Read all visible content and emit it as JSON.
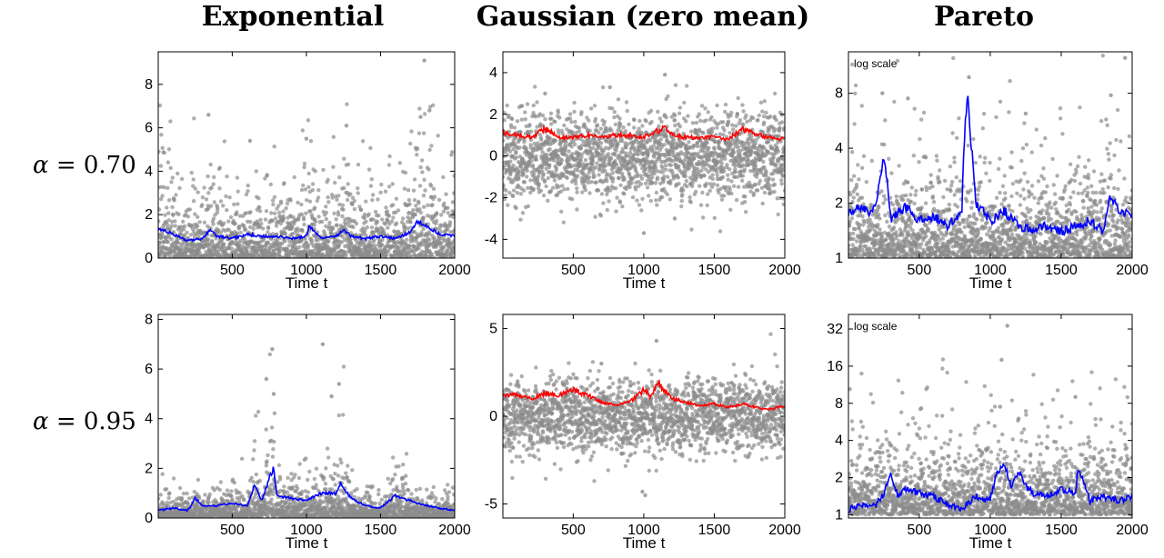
{
  "columns": [
    "Exponential",
    "Gaussian (zero mean)",
    "Pareto"
  ],
  "rows": [
    {
      "greek": "α",
      "value": " = 0.70"
    },
    {
      "greek": "α",
      "value": " = 0.95"
    }
  ],
  "colors": {
    "scatter": "#8c8c8c",
    "blue_line": "#0000ff",
    "red_line": "#ff0000",
    "frame": "#000000"
  },
  "chart_data": [
    {
      "type": "scatter",
      "row": 0,
      "col": 0,
      "dist": "exponential",
      "scale": 1.0,
      "xlabel": "Time t",
      "xlim": [
        1,
        2000
      ],
      "ylim": [
        0,
        9.5
      ],
      "x_ticks": [
        500,
        1000,
        1500,
        2000
      ],
      "y_ticks": [
        0,
        2,
        4,
        6,
        8
      ],
      "y_tick_labels": [
        "0",
        "2",
        "4",
        "6",
        "8"
      ],
      "annotation": "",
      "line_color": "#0000ff",
      "series": [
        {
          "kind": "samples",
          "n_points": 2000
        },
        {
          "kind": "running_estimate",
          "x": [
            1,
            100,
            200,
            300,
            350,
            400,
            500,
            600,
            700,
            800,
            900,
            1000,
            1020,
            1100,
            1200,
            1250,
            1300,
            1400,
            1500,
            1600,
            1700,
            1750,
            1800,
            1900,
            2000
          ],
          "y": [
            1.4,
            1.1,
            0.8,
            0.9,
            1.3,
            1.0,
            0.9,
            1.1,
            1.0,
            1.0,
            0.9,
            1.0,
            1.5,
            0.9,
            1.0,
            1.3,
            1.0,
            0.9,
            1.0,
            0.9,
            1.2,
            1.7,
            1.5,
            1.1,
            1.0
          ]
        }
      ],
      "highlights": [
        [
          1795,
          9.1
        ],
        [
          340,
          6.6
        ],
        [
          1270,
          6.1
        ],
        [
          1830,
          6.8
        ],
        [
          1770,
          6.5
        ],
        [
          1000,
          5.5
        ],
        [
          620,
          5.4
        ]
      ]
    },
    {
      "type": "scatter",
      "row": 0,
      "col": 1,
      "dist": "gaussian",
      "scale": 1.0,
      "xlabel": "Time t",
      "xlim": [
        1,
        2000
      ],
      "ylim": [
        -4.9,
        5.0
      ],
      "x_ticks": [
        500,
        1000,
        1500,
        2000
      ],
      "y_ticks": [
        -4,
        -2,
        0,
        2,
        4
      ],
      "y_tick_labels": [
        "-4",
        "-2",
        "0",
        "2",
        "4"
      ],
      "annotation": "",
      "line_color": "#ff0000",
      "series": [
        {
          "kind": "samples",
          "n_points": 2000
        },
        {
          "kind": "running_estimate",
          "x": [
            1,
            100,
            200,
            300,
            400,
            500,
            600,
            700,
            800,
            900,
            1000,
            1100,
            1150,
            1200,
            1300,
            1400,
            1500,
            1600,
            1700,
            1800,
            1900,
            2000
          ],
          "y": [
            1.1,
            1.0,
            0.9,
            1.3,
            0.9,
            0.9,
            1.0,
            0.9,
            1.0,
            1.0,
            0.9,
            1.2,
            1.4,
            1.0,
            0.9,
            0.9,
            0.9,
            0.8,
            1.3,
            1.0,
            0.9,
            0.8
          ]
        }
      ],
      "highlights": [
        [
          1150,
          3.9
        ],
        [
          1000,
          -3.7
        ],
        [
          300,
          3.0
        ],
        [
          760,
          3.3
        ],
        [
          1220,
          -3.0
        ]
      ]
    },
    {
      "type": "scatter",
      "row": 0,
      "col": 2,
      "dist": "pareto",
      "scale": 0.35,
      "xlabel": "Time t",
      "xlim": [
        1,
        2000
      ],
      "ylim": [
        1,
        13.5
      ],
      "log_y": true,
      "x_ticks": [
        500,
        1000,
        1500,
        2000
      ],
      "y_ticks": [
        1,
        2,
        4,
        8
      ],
      "y_tick_labels": [
        "1",
        "2",
        "4",
        "8"
      ],
      "annotation": "log scale",
      "line_color": "#0000ff",
      "series": [
        {
          "kind": "samples",
          "n_points": 2000
        },
        {
          "kind": "running_estimate",
          "x": [
            1,
            100,
            150,
            200,
            250,
            300,
            400,
            500,
            600,
            700,
            800,
            840,
            860,
            900,
            1000,
            1100,
            1200,
            1300,
            1400,
            1500,
            1600,
            1700,
            1800,
            1850,
            1900,
            2000
          ],
          "y": [
            1.8,
            1.9,
            1.7,
            2.0,
            3.5,
            1.6,
            1.9,
            1.6,
            1.7,
            1.5,
            1.8,
            7.8,
            4.5,
            2.0,
            1.6,
            1.8,
            1.5,
            1.4,
            1.5,
            1.4,
            1.5,
            1.6,
            1.4,
            2.2,
            1.8,
            1.7
          ]
        }
      ],
      "highlights": [
        [
          1950,
          12.5
        ],
        [
          850,
          9.8
        ],
        [
          240,
          8.0
        ],
        [
          420,
          7.5
        ],
        [
          1850,
          7.8
        ],
        [
          1250,
          6.2
        ]
      ]
    },
    {
      "type": "scatter",
      "row": 1,
      "col": 0,
      "dist": "exponential",
      "scale": 0.6,
      "xlabel": "Time t",
      "xlim": [
        1,
        2000
      ],
      "ylim": [
        0,
        8.2
      ],
      "x_ticks": [
        500,
        1000,
        1500,
        2000
      ],
      "y_ticks": [
        0,
        2,
        4,
        6,
        8
      ],
      "y_tick_labels": [
        "0",
        "2",
        "4",
        "6",
        "8"
      ],
      "annotation": "",
      "line_color": "#0000ff",
      "series": [
        {
          "kind": "samples",
          "n_points": 2000
        },
        {
          "kind": "running_estimate",
          "x": [
            1,
            100,
            200,
            250,
            300,
            400,
            500,
            600,
            650,
            700,
            750,
            780,
            800,
            900,
            1000,
            1100,
            1200,
            1230,
            1300,
            1400,
            1500,
            1600,
            1700,
            1800,
            1900,
            2000
          ],
          "y": [
            0.3,
            0.4,
            0.3,
            0.8,
            0.5,
            0.5,
            0.6,
            0.5,
            1.3,
            0.7,
            1.6,
            2.0,
            0.9,
            0.8,
            0.7,
            1.0,
            1.0,
            1.4,
            0.8,
            0.5,
            0.4,
            0.9,
            0.7,
            0.5,
            0.4,
            0.3
          ]
        }
      ],
      "highlights": [
        [
          1110,
          7.0
        ],
        [
          770,
          6.8
        ],
        [
          730,
          5.6
        ],
        [
          780,
          5.0
        ],
        [
          1220,
          5.4
        ],
        [
          1170,
          4.9
        ]
      ]
    },
    {
      "type": "scatter",
      "row": 1,
      "col": 1,
      "dist": "gaussian",
      "scale": 1.0,
      "xlabel": "Time t",
      "xlim": [
        1,
        2000
      ],
      "ylim": [
        -5.8,
        5.8
      ],
      "x_ticks": [
        500,
        1000,
        1500,
        2000
      ],
      "y_ticks": [
        -5,
        0,
        5
      ],
      "y_tick_labels": [
        "-5",
        "0",
        "5"
      ],
      "annotation": "",
      "line_color": "#ff0000",
      "series": [
        {
          "kind": "samples",
          "n_points": 2000
        },
        {
          "kind": "running_estimate",
          "x": [
            1,
            100,
            200,
            300,
            400,
            500,
            600,
            700,
            800,
            900,
            1000,
            1050,
            1100,
            1200,
            1300,
            1400,
            1500,
            1600,
            1700,
            1800,
            1900,
            2000
          ],
          "y": [
            1.2,
            1.2,
            1.0,
            1.3,
            1.2,
            1.5,
            1.2,
            0.8,
            0.6,
            0.8,
            1.5,
            1.1,
            1.9,
            1.0,
            0.8,
            0.6,
            0.7,
            0.5,
            0.7,
            0.5,
            0.4,
            0.6
          ]
        }
      ],
      "highlights": [
        [
          1090,
          4.3
        ],
        [
          990,
          -4.3
        ],
        [
          1010,
          -4.5
        ],
        [
          700,
          3.0
        ]
      ]
    },
    {
      "type": "scatter",
      "row": 1,
      "col": 2,
      "dist": "pareto",
      "scale": 0.45,
      "xlabel": "Time t",
      "xlim": [
        1,
        2000
      ],
      "ylim": [
        0.94,
        42
      ],
      "log_y": true,
      "x_ticks": [
        500,
        1000,
        1500,
        2000
      ],
      "y_ticks": [
        1,
        2,
        4,
        8,
        16,
        32
      ],
      "y_tick_labels": [
        "1",
        "2",
        "4",
        "8",
        "16",
        "32"
      ],
      "annotation": "log scale",
      "line_color": "#0000ff",
      "series": [
        {
          "kind": "samples",
          "n_points": 2000
        },
        {
          "kind": "running_estimate",
          "x": [
            1,
            100,
            200,
            250,
            300,
            350,
            400,
            500,
            600,
            700,
            800,
            900,
            1000,
            1050,
            1100,
            1150,
            1200,
            1250,
            1300,
            1400,
            1500,
            1600,
            1620,
            1700,
            1800,
            1900,
            2000
          ],
          "y": [
            1.1,
            1.2,
            1.2,
            1.5,
            2.1,
            1.4,
            1.6,
            1.5,
            1.4,
            1.2,
            1.1,
            1.4,
            1.3,
            2.2,
            2.5,
            1.6,
            2.3,
            1.7,
            1.5,
            1.4,
            1.6,
            1.5,
            2.3,
            1.3,
            1.4,
            1.3,
            1.4
          ]
        }
      ],
      "highlights": [
        [
          1120,
          34
        ],
        [
          1080,
          18
        ],
        [
          1600,
          9
        ],
        [
          1070,
          7.5
        ],
        [
          1200,
          6
        ]
      ]
    }
  ]
}
